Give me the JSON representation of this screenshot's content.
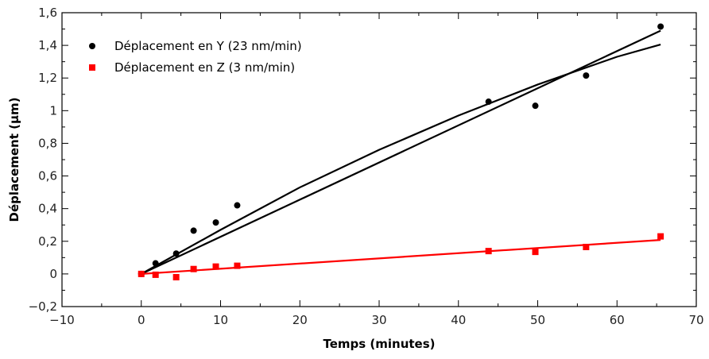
{
  "chart_data": {
    "type": "scatter",
    "xlabel": "Temps (minutes)",
    "ylabel": "Déplacement (µm)",
    "xlim": [
      -10,
      70
    ],
    "ylim": [
      -0.2,
      1.6
    ],
    "xticks": [
      -10,
      0,
      10,
      20,
      30,
      40,
      50,
      60,
      70
    ],
    "xtick_labels": [
      "−10",
      "0",
      "10",
      "20",
      "30",
      "40",
      "50",
      "60",
      "70"
    ],
    "yticks": [
      -0.2,
      0,
      0.2,
      0.4,
      0.6,
      0.8,
      1,
      1.2,
      1.4,
      1.6
    ],
    "ytick_labels": [
      "−0,2",
      "0",
      "0,2",
      "0,4",
      "0,6",
      "0,8",
      "1",
      "1,2",
      "1,4",
      "1,6"
    ],
    "grid": false,
    "legend_position": "top-left",
    "series": [
      {
        "name": "Déplacement en Y (23 nm/min)",
        "marker": "circle",
        "color": "#000000",
        "x": [
          0,
          1.8,
          4.4,
          6.6,
          9.4,
          12.1,
          43.8,
          49.7,
          56.1,
          65.5
        ],
        "y": [
          0.0,
          0.065,
          0.125,
          0.265,
          0.315,
          0.42,
          1.055,
          1.03,
          1.215,
          1.515
        ],
        "fits": [
          {
            "kind": "linear",
            "x": [
              0,
              65.5
            ],
            "y": [
              0,
              1.49
            ]
          },
          {
            "kind": "curve",
            "x": [
              0,
              10,
              20,
              30,
              40,
              50,
              60,
              65.5
            ],
            "y": [
              0,
              0.27,
              0.53,
              0.76,
              0.97,
              1.16,
              1.33,
              1.405
            ]
          }
        ]
      },
      {
        "name": "Déplacement en Z (3 nm/min)",
        "marker": "square",
        "color": "#ff0000",
        "x": [
          0,
          1.8,
          4.4,
          6.6,
          9.4,
          12.1,
          43.8,
          49.7,
          56.1,
          65.5
        ],
        "y": [
          0.0,
          -0.005,
          -0.02,
          0.03,
          0.045,
          0.05,
          0.14,
          0.135,
          0.165,
          0.23
        ],
        "fits": [
          {
            "kind": "linear",
            "x": [
              0,
              65.5
            ],
            "y": [
              0.0,
              0.208
            ]
          }
        ]
      }
    ]
  }
}
